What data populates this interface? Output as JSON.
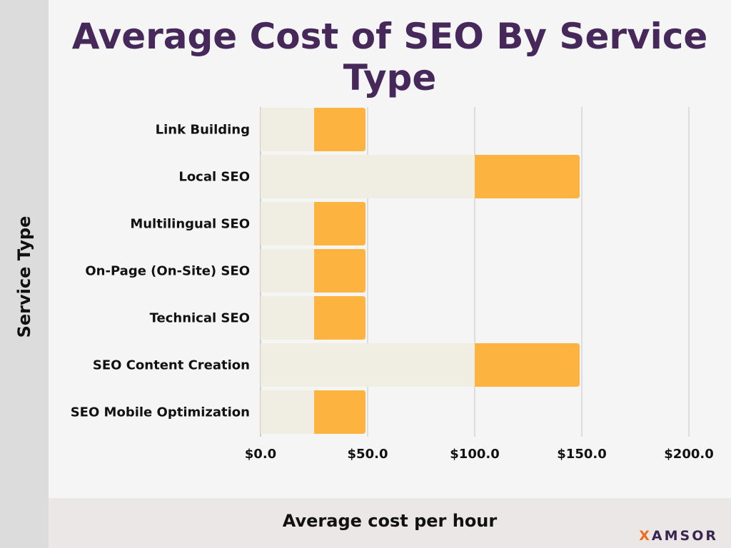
{
  "chart_data": {
    "type": "bar",
    "orientation": "horizontal",
    "stacked_range": true,
    "title": "Average Cost of SEO By Service Type",
    "xlabel": "Average cost per hour",
    "ylabel": "Service Type",
    "categories": [
      "Link Building",
      "Local SEO",
      "Multilingual SEO",
      "On-Page (On-Site) SEO",
      "Technical SEO",
      "SEO Content Creation",
      "SEO Mobile Optimization"
    ],
    "series": [
      {
        "values": [
          25,
          100,
          25,
          25,
          25,
          100,
          25
        ]
      },
      {
        "values": [
          49,
          149,
          49,
          49,
          49,
          149,
          49
        ]
      }
    ],
    "xlim": [
      0,
      200
    ],
    "xticks": [
      0,
      50,
      100,
      150,
      200
    ],
    "xtick_labels": [
      "$0.0",
      "$50.0",
      "$100.0",
      "$150.0",
      "$200.0"
    ],
    "grid": true,
    "colors": {
      "low": "#f0eee3",
      "high": "#fdb33f",
      "title": "#46285a",
      "grid": "#dddddd"
    }
  },
  "brand": {
    "logo_text": "XAMSOR"
  }
}
